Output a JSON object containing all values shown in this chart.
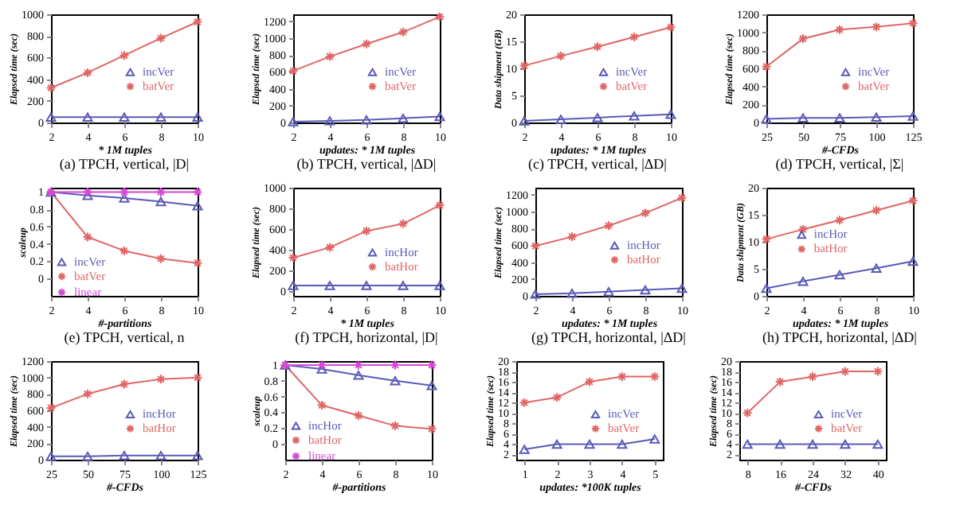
{
  "chart_data": [
    {
      "type": "line",
      "title": "(a) TPCH, vertical, |D|",
      "xlabel": "* 1M tuples",
      "ylabel": "Elapsed time (sec)",
      "x": [
        2,
        4,
        6,
        8,
        10
      ],
      "xlim": [
        2,
        10
      ],
      "xticks": [
        2,
        4,
        6,
        8,
        10
      ],
      "ylim": [
        0,
        1000
      ],
      "yticks": [
        0,
        200,
        400,
        600,
        800,
        1000
      ],
      "legend": "right",
      "series": [
        {
          "name": "incVer",
          "color": "#5a5ab8",
          "marker": "triangle",
          "values": [
            50,
            50,
            50,
            50,
            50
          ]
        },
        {
          "name": "batVer",
          "color": "#e06666",
          "marker": "cross",
          "values": [
            320,
            460,
            620,
            780,
            930
          ]
        }
      ]
    },
    {
      "type": "line",
      "title": "(b) TPCH, vertical, |ΔD|",
      "xlabel": "updates: * 1M tuples",
      "ylabel": "Elapsed time (sec)",
      "x": [
        2,
        4,
        6,
        8,
        10
      ],
      "xlim": [
        2,
        10
      ],
      "xticks": [
        2,
        4,
        6,
        8,
        10
      ],
      "ylim": [
        0,
        1280
      ],
      "yticks": [
        0,
        200,
        400,
        600,
        800,
        1000,
        1200
      ],
      "legend": "right",
      "series": [
        {
          "name": "incVer",
          "color": "#5a5ab8",
          "marker": "triangle",
          "values": [
            10,
            20,
            30,
            50,
            70
          ]
        },
        {
          "name": "batVer",
          "color": "#e06666",
          "marker": "cross",
          "values": [
            610,
            780,
            930,
            1070,
            1250
          ]
        }
      ]
    },
    {
      "type": "line",
      "title": "(c) TPCH, vertical, |ΔD|",
      "xlabel": "updates: * 1M tuples",
      "ylabel": "Data shipment (GB)",
      "x": [
        2,
        4,
        6,
        8,
        10
      ],
      "xlim": [
        2,
        10
      ],
      "xticks": [
        2,
        4,
        6,
        8,
        10
      ],
      "ylim": [
        0,
        20
      ],
      "yticks": [
        0,
        5,
        10,
        15,
        20
      ],
      "legend": "right",
      "series": [
        {
          "name": "incVer",
          "color": "#5a5ab8",
          "marker": "triangle",
          "values": [
            0.3,
            0.6,
            0.9,
            1.2,
            1.5
          ]
        },
        {
          "name": "batVer",
          "color": "#e06666",
          "marker": "cross",
          "values": [
            10.5,
            12.3,
            14,
            15.8,
            17.6
          ]
        }
      ]
    },
    {
      "type": "line",
      "title": "(d) TPCH, vertical, |Σ|",
      "xlabel": "#-CFDs",
      "ylabel": "Elapsed time (sec)",
      "x": [
        25,
        50,
        75,
        100,
        125
      ],
      "xlim": [
        25,
        125
      ],
      "xticks": [
        25,
        50,
        75,
        100,
        125
      ],
      "ylim": [
        0,
        1200
      ],
      "yticks": [
        0,
        200,
        400,
        600,
        800,
        1000,
        1200
      ],
      "legend": "right",
      "series": [
        {
          "name": "incVer",
          "color": "#5a5ab8",
          "marker": "triangle",
          "values": [
            40,
            50,
            50,
            60,
            70
          ]
        },
        {
          "name": "batVer",
          "color": "#e06666",
          "marker": "cross",
          "values": [
            620,
            930,
            1030,
            1060,
            1100
          ]
        }
      ]
    },
    {
      "type": "line",
      "title": "(e) TPCH, vertical, n",
      "xlabel": "#-partitions",
      "ylabel": "scaleup",
      "x": [
        2,
        4,
        6,
        8,
        10
      ],
      "xlim": [
        2,
        10
      ],
      "xticks": [
        2,
        4,
        6,
        8,
        10
      ],
      "ylim": [
        -0.2,
        1.05
      ],
      "yticks": [
        0,
        0.2,
        0.4,
        0.6,
        0.8,
        1
      ],
      "legend": "bottom left",
      "series": [
        {
          "name": "incVer",
          "color": "#5a5ab8",
          "marker": "triangle",
          "values": [
            1,
            0.96,
            0.93,
            0.89,
            0.84
          ]
        },
        {
          "name": "batVer",
          "color": "#e06666",
          "marker": "cross",
          "values": [
            1,
            0.48,
            0.32,
            0.23,
            0.18
          ]
        },
        {
          "name": "linear",
          "color": "#d848d8",
          "marker": "cross",
          "values": [
            1,
            1,
            1,
            1,
            1
          ]
        }
      ]
    },
    {
      "type": "line",
      "title": "(f) TPCH, horizontal, |D|",
      "xlabel": "* 1M tuples",
      "ylabel": "Elapsed time (sec)",
      "x": [
        2,
        4,
        6,
        8,
        10
      ],
      "xlim": [
        2,
        10
      ],
      "xticks": [
        2,
        4,
        6,
        8,
        10
      ],
      "ylim": [
        -50,
        1000
      ],
      "yticks": [
        0,
        200,
        400,
        600,
        800,
        1000
      ],
      "legend": "bottom right",
      "series": [
        {
          "name": "incHor",
          "color": "#5a5ab8",
          "marker": "triangle",
          "values": [
            50,
            50,
            50,
            50,
            50
          ]
        },
        {
          "name": "batHor",
          "color": "#e06666",
          "marker": "cross",
          "values": [
            320,
            420,
            580,
            650,
            830
          ]
        }
      ]
    },
    {
      "type": "line",
      "title": "(g) TPCH, horizontal, |ΔD|",
      "xlabel": "updates: * 1M tuples",
      "ylabel": "Elapsed time (sec)",
      "x": [
        2,
        4,
        6,
        8,
        10
      ],
      "xlim": [
        2,
        10
      ],
      "xticks": [
        2,
        4,
        6,
        8,
        10
      ],
      "ylim": [
        0,
        1280
      ],
      "yticks": [
        0,
        200,
        400,
        600,
        800,
        1000,
        1200
      ],
      "legend": "right",
      "series": [
        {
          "name": "incHor",
          "color": "#5a5ab8",
          "marker": "triangle",
          "values": [
            20,
            30,
            50,
            70,
            90
          ]
        },
        {
          "name": "batHor",
          "color": "#e06666",
          "marker": "cross",
          "values": [
            590,
            700,
            830,
            980,
            1160
          ]
        }
      ]
    },
    {
      "type": "line",
      "title": "(h) TPCH, horizontal, |ΔD|",
      "xlabel": "updates: * 1M tuples",
      "ylabel": "Data shipment (GB)",
      "x": [
        2,
        4,
        6,
        8,
        10
      ],
      "xlim": [
        2,
        10
      ],
      "xticks": [
        2,
        4,
        6,
        8,
        10
      ],
      "ylim": [
        0,
        20
      ],
      "yticks": [
        0,
        5,
        10,
        15,
        20
      ],
      "legend": "center",
      "series": [
        {
          "name": "incHor",
          "color": "#5a5ab8",
          "marker": "triangle",
          "values": [
            1.4,
            2.7,
            3.9,
            5.1,
            6.4
          ]
        },
        {
          "name": "batHor",
          "color": "#e06666",
          "marker": "cross",
          "values": [
            10.5,
            12.3,
            14,
            15.8,
            17.6
          ]
        }
      ]
    },
    {
      "type": "line",
      "xlabel": "#-CFDs",
      "ylabel": "Elapsed time (sec)",
      "x": [
        25,
        50,
        75,
        100,
        125
      ],
      "xlim": [
        25,
        125
      ],
      "xticks": [
        25,
        50,
        75,
        100,
        125
      ],
      "ylim": [
        0,
        1200
      ],
      "yticks": [
        0,
        200,
        400,
        600,
        800,
        1000,
        1200
      ],
      "legend": "right",
      "series": [
        {
          "name": "incHor",
          "color": "#5a5ab8",
          "marker": "triangle",
          "values": [
            40,
            40,
            50,
            50,
            50
          ]
        },
        {
          "name": "batHor",
          "color": "#e06666",
          "marker": "cross",
          "values": [
            630,
            800,
            920,
            980,
            1000
          ]
        }
      ]
    },
    {
      "type": "line",
      "xlabel": "#-partitions",
      "ylabel": "scaleup",
      "x": [
        2,
        4,
        6,
        8,
        10
      ],
      "xlim": [
        2,
        10
      ],
      "xticks": [
        2,
        4,
        6,
        8,
        10
      ],
      "ylim": [
        -0.2,
        1.05
      ],
      "yticks": [
        0,
        0.2,
        0.4,
        0.6,
        0.8,
        1
      ],
      "legend": "bottom left",
      "series": [
        {
          "name": "incHor",
          "color": "#5a5ab8",
          "marker": "triangle",
          "values": [
            1,
            0.95,
            0.87,
            0.8,
            0.74
          ]
        },
        {
          "name": "batHor",
          "color": "#e06666",
          "marker": "cross",
          "values": [
            1,
            0.49,
            0.36,
            0.23,
            0.19
          ]
        },
        {
          "name": "linear",
          "color": "#d848d8",
          "marker": "cross",
          "values": [
            1,
            1,
            1,
            1,
            1
          ]
        }
      ]
    },
    {
      "type": "line",
      "xlabel": "updates: *100K tuples",
      "ylabel": "Elapsed time (sec)",
      "x": [
        1,
        2,
        3,
        4,
        5
      ],
      "xlim": [
        0.75,
        5.25
      ],
      "xticks": [
        1,
        2,
        3,
        4,
        5
      ],
      "ylim": [
        1,
        20
      ],
      "yticks": [
        2,
        4,
        6,
        8,
        10,
        12,
        14,
        16,
        18,
        20
      ],
      "legend": "right",
      "series": [
        {
          "name": "incVer",
          "color": "#5a5ab8",
          "marker": "triangle",
          "values": [
            3,
            4,
            4,
            4,
            5
          ]
        },
        {
          "name": "batVer",
          "color": "#e06666",
          "marker": "cross",
          "values": [
            12,
            13,
            16,
            17,
            17
          ]
        }
      ]
    },
    {
      "type": "line",
      "xlabel": "#-CFDs",
      "ylabel": "Elapsed time (sec)",
      "x": [
        8,
        16,
        24,
        32,
        40
      ],
      "xlim": [
        6,
        42
      ],
      "xticks": [
        8,
        16,
        24,
        32,
        40
      ],
      "ylim": [
        1,
        20
      ],
      "yticks": [
        2,
        4,
        6,
        8,
        10,
        12,
        14,
        16,
        18,
        20
      ],
      "legend": "right",
      "series": [
        {
          "name": "incVer",
          "color": "#5a5ab8",
          "marker": "triangle",
          "values": [
            4,
            4,
            4,
            4,
            4
          ]
        },
        {
          "name": "batVer",
          "color": "#e06666",
          "marker": "cross",
          "values": [
            10,
            16,
            17,
            18,
            18
          ]
        }
      ]
    }
  ]
}
